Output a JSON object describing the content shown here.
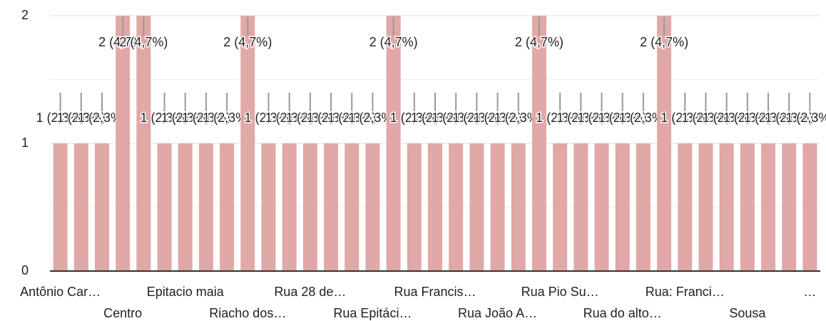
{
  "chart_data": {
    "type": "bar",
    "categories": [
      "Antônio Car…",
      null,
      null,
      "Centro",
      null,
      null,
      "Epitacio maia",
      null,
      null,
      "Riacho dos…",
      null,
      null,
      "Rua 28 de…",
      null,
      null,
      "Rua Epitáci…",
      null,
      null,
      "Rua Francis…",
      null,
      null,
      "Rua João A…",
      null,
      null,
      "Rua Pio Su…",
      null,
      null,
      "Rua do alto…",
      null,
      null,
      "Rua: Franci…",
      null,
      null,
      "Sousa",
      null,
      null,
      "…"
    ],
    "values": [
      1,
      1,
      1,
      2,
      2,
      1,
      1,
      1,
      1,
      2,
      1,
      1,
      1,
      1,
      1,
      1,
      2,
      1,
      1,
      1,
      1,
      1,
      1,
      2,
      1,
      1,
      1,
      1,
      1,
      2,
      1,
      1,
      1,
      1,
      1,
      1,
      1
    ],
    "value_labels": [
      "1 (2,3%)",
      "1 (2,3%)",
      "1 (2,3%)",
      "2 (4,7%)",
      "2 (4,7%)",
      "1 (2,3%)",
      "1 (2,3%)",
      "1 (2,3%)",
      "1 (2,3%)",
      "2 (4,7%)",
      "1 (2,3%)",
      "1 (2,3%)",
      "1 (2,3%)",
      "1 (2,3%)",
      "1 (2,3%)",
      "1 (2,3%)",
      "2 (4,7%)",
      "1 (2,3%)",
      "1 (2,3%)",
      "1 (2,3%)",
      "1 (2,3%)",
      "1 (2,3%)",
      "1 (2,3%)",
      "2 (4,7%)",
      "1 (2,3%)",
      "1 (2,3%)",
      "1 (2,3%)",
      "1 (2,3%)",
      "1 (2,3%)",
      "2 (4,7%)",
      "1 (2,3%)",
      "1 (2,3%)",
      "1 (2,3%)",
      "1 (2,3%)",
      "1 (2,3%)",
      "1 (2,3%)",
      "1 (2,3%)"
    ],
    "color": "#e0a8a6",
    "ylim": [
      0,
      2
    ],
    "yticks": [
      0,
      1,
      2
    ],
    "grid": true
  }
}
